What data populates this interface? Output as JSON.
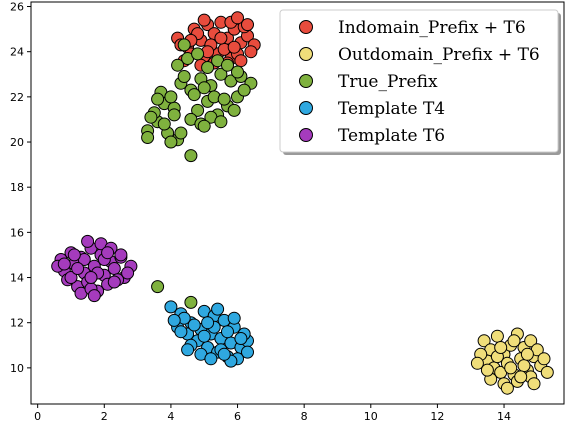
{
  "chart_data": {
    "type": "scatter",
    "title": "",
    "xlabel": "",
    "ylabel": "",
    "xlim": [
      -0.2,
      15.8
    ],
    "ylim": [
      8.4,
      26.2
    ],
    "x_ticks": [
      "0",
      "2",
      "4",
      "6",
      "8",
      "10",
      "12",
      "14"
    ],
    "y_ticks": [
      "10",
      "12",
      "14",
      "16",
      "18",
      "20",
      "22",
      "24",
      "26"
    ],
    "grid": false,
    "legend_position": "top-right",
    "series": [
      {
        "name": "Indomain_Prefix + T6",
        "color": "#e84c3d",
        "points": [
          [
            4.2,
            24.6
          ],
          [
            4.5,
            24.2
          ],
          [
            4.7,
            25.0
          ],
          [
            4.9,
            24.5
          ],
          [
            5.1,
            25.2
          ],
          [
            5.3,
            24.8
          ],
          [
            5.5,
            25.3
          ],
          [
            5.7,
            24.6
          ],
          [
            5.9,
            25.0
          ],
          [
            6.1,
            24.4
          ],
          [
            6.3,
            24.7
          ],
          [
            6.5,
            24.3
          ],
          [
            5.0,
            23.8
          ],
          [
            5.4,
            23.9
          ],
          [
            5.8,
            23.7
          ],
          [
            6.0,
            23.9
          ],
          [
            4.6,
            23.9
          ],
          [
            5.2,
            24.3
          ],
          [
            5.6,
            24.1
          ],
          [
            6.2,
            25.1
          ],
          [
            5.8,
            25.3
          ],
          [
            4.4,
            23.6
          ],
          [
            5.0,
            25.4
          ],
          [
            6.4,
            24.0
          ],
          [
            5.3,
            23.5
          ],
          [
            4.8,
            24.8
          ],
          [
            5.9,
            24.2
          ],
          [
            4.3,
            24.3
          ],
          [
            6.0,
            25.5
          ],
          [
            5.5,
            24.6
          ],
          [
            4.9,
            23.4
          ],
          [
            6.1,
            23.6
          ],
          [
            5.7,
            23.5
          ],
          [
            5.1,
            24.0
          ],
          [
            4.6,
            24.5
          ],
          [
            6.3,
            25.2
          ]
        ]
      },
      {
        "name": "Outdomain_Prefix + T6",
        "color": "#f0de7a",
        "points": [
          [
            13.4,
            11.2
          ],
          [
            13.6,
            10.8
          ],
          [
            13.8,
            11.4
          ],
          [
            14.0,
            10.6
          ],
          [
            14.2,
            11.0
          ],
          [
            14.4,
            11.5
          ],
          [
            14.6,
            10.9
          ],
          [
            14.8,
            11.2
          ],
          [
            13.5,
            10.3
          ],
          [
            13.7,
            10.0
          ],
          [
            13.9,
            9.8
          ],
          [
            14.1,
            10.2
          ],
          [
            14.3,
            9.7
          ],
          [
            14.5,
            10.4
          ],
          [
            14.7,
            9.9
          ],
          [
            14.9,
            10.5
          ],
          [
            15.1,
            10.1
          ],
          [
            15.3,
            9.8
          ],
          [
            13.3,
            10.6
          ],
          [
            13.6,
            9.5
          ],
          [
            14.0,
            9.3
          ],
          [
            14.4,
            9.4
          ],
          [
            14.8,
            9.6
          ],
          [
            15.0,
            10.8
          ],
          [
            13.8,
            10.5
          ],
          [
            14.2,
            10.0
          ],
          [
            14.6,
            10.1
          ],
          [
            15.2,
            10.4
          ],
          [
            13.5,
            9.9
          ],
          [
            14.1,
            9.1
          ],
          [
            14.5,
            9.6
          ],
          [
            14.9,
            9.3
          ],
          [
            13.9,
            10.9
          ],
          [
            14.3,
            11.2
          ],
          [
            14.7,
            10.6
          ],
          [
            13.2,
            10.2
          ]
        ]
      },
      {
        "name": "True_Prefix",
        "color": "#7fb13e",
        "points": [
          [
            3.3,
            20.5
          ],
          [
            3.6,
            20.9
          ],
          [
            3.9,
            20.4
          ],
          [
            4.2,
            20.1
          ],
          [
            3.5,
            21.3
          ],
          [
            3.8,
            21.7
          ],
          [
            4.1,
            21.5
          ],
          [
            3.4,
            21.1
          ],
          [
            3.7,
            22.2
          ],
          [
            4.0,
            22.0
          ],
          [
            4.3,
            22.6
          ],
          [
            4.6,
            22.3
          ],
          [
            4.9,
            22.8
          ],
          [
            5.2,
            22.5
          ],
          [
            5.5,
            23.0
          ],
          [
            5.8,
            22.7
          ],
          [
            6.1,
            22.9
          ],
          [
            6.4,
            22.6
          ],
          [
            4.8,
            21.4
          ],
          [
            5.1,
            21.8
          ],
          [
            5.4,
            21.2
          ],
          [
            5.7,
            21.6
          ],
          [
            6.0,
            22.0
          ],
          [
            4.6,
            21.0
          ],
          [
            4.9,
            20.8
          ],
          [
            5.2,
            21.1
          ],
          [
            5.5,
            20.9
          ],
          [
            4.2,
            23.4
          ],
          [
            4.5,
            23.7
          ],
          [
            4.8,
            23.9
          ],
          [
            5.1,
            23.3
          ],
          [
            5.4,
            23.6
          ],
          [
            5.7,
            23.4
          ],
          [
            4.0,
            20.0
          ],
          [
            4.3,
            20.4
          ],
          [
            3.3,
            20.2
          ],
          [
            4.6,
            19.4
          ],
          [
            4.4,
            24.3
          ],
          [
            5.0,
            20.7
          ],
          [
            5.9,
            21.4
          ],
          [
            6.2,
            22.3
          ],
          [
            3.6,
            21.9
          ],
          [
            4.1,
            21.2
          ],
          [
            4.7,
            22.1
          ],
          [
            5.3,
            22.0
          ],
          [
            5.6,
            21.9
          ],
          [
            4.4,
            22.9
          ],
          [
            6.0,
            23.1
          ],
          [
            3.8,
            20.8
          ],
          [
            5.0,
            22.4
          ],
          [
            3.6,
            13.6
          ],
          [
            4.6,
            12.9
          ]
        ]
      },
      {
        "name": "Template T4",
        "color": "#2fa8e0",
        "points": [
          [
            4.0,
            12.7
          ],
          [
            4.3,
            12.4
          ],
          [
            4.6,
            12.0
          ],
          [
            4.9,
            11.7
          ],
          [
            5.2,
            11.5
          ],
          [
            5.5,
            11.3
          ],
          [
            5.8,
            11.1
          ],
          [
            6.1,
            10.9
          ],
          [
            6.3,
            11.2
          ],
          [
            4.2,
            11.8
          ],
          [
            4.5,
            11.5
          ],
          [
            4.8,
            11.2
          ],
          [
            5.1,
            10.9
          ],
          [
            5.4,
            10.7
          ],
          [
            5.7,
            10.5
          ],
          [
            6.0,
            10.4
          ],
          [
            4.4,
            12.2
          ],
          [
            4.7,
            11.9
          ],
          [
            5.0,
            12.5
          ],
          [
            5.3,
            12.3
          ],
          [
            5.6,
            12.1
          ],
          [
            5.9,
            11.8
          ],
          [
            6.2,
            11.5
          ],
          [
            4.6,
            11.0
          ],
          [
            4.9,
            10.6
          ],
          [
            5.2,
            10.4
          ],
          [
            5.5,
            10.8
          ],
          [
            5.8,
            10.3
          ],
          [
            4.1,
            12.1
          ],
          [
            5.0,
            11.4
          ],
          [
            5.3,
            11.8
          ],
          [
            5.7,
            11.6
          ],
          [
            6.1,
            11.3
          ],
          [
            4.5,
            10.8
          ],
          [
            5.4,
            12.6
          ],
          [
            5.9,
            12.2
          ],
          [
            4.3,
            11.6
          ],
          [
            5.1,
            12.0
          ],
          [
            5.6,
            10.6
          ],
          [
            6.3,
            10.7
          ]
        ]
      },
      {
        "name": "Template T6",
        "color": "#a53bbd",
        "points": [
          [
            0.7,
            14.8
          ],
          [
            1.0,
            15.1
          ],
          [
            1.3,
            14.9
          ],
          [
            1.6,
            15.3
          ],
          [
            1.9,
            15.0
          ],
          [
            2.2,
            14.7
          ],
          [
            2.5,
            14.9
          ],
          [
            2.8,
            14.5
          ],
          [
            0.8,
            14.3
          ],
          [
            1.1,
            14.6
          ],
          [
            1.4,
            14.2
          ],
          [
            1.7,
            14.5
          ],
          [
            2.0,
            14.1
          ],
          [
            2.3,
            14.4
          ],
          [
            2.6,
            14.0
          ],
          [
            0.9,
            13.9
          ],
          [
            1.2,
            13.6
          ],
          [
            1.5,
            13.8
          ],
          [
            1.8,
            13.4
          ],
          [
            2.1,
            13.7
          ],
          [
            2.4,
            13.9
          ],
          [
            1.0,
            14.0
          ],
          [
            1.3,
            13.3
          ],
          [
            1.6,
            13.5
          ],
          [
            1.9,
            15.5
          ],
          [
            1.5,
            15.6
          ],
          [
            2.2,
            15.3
          ],
          [
            0.6,
            14.5
          ],
          [
            2.7,
            14.2
          ],
          [
            1.4,
            14.8
          ],
          [
            1.8,
            14.2
          ],
          [
            2.0,
            14.8
          ],
          [
            1.1,
            15.0
          ],
          [
            2.3,
            13.8
          ],
          [
            1.7,
            13.2
          ],
          [
            0.8,
            14.6
          ],
          [
            2.5,
            15.0
          ],
          [
            1.2,
            14.4
          ],
          [
            1.6,
            14.0
          ],
          [
            2.1,
            15.1
          ]
        ]
      }
    ]
  }
}
